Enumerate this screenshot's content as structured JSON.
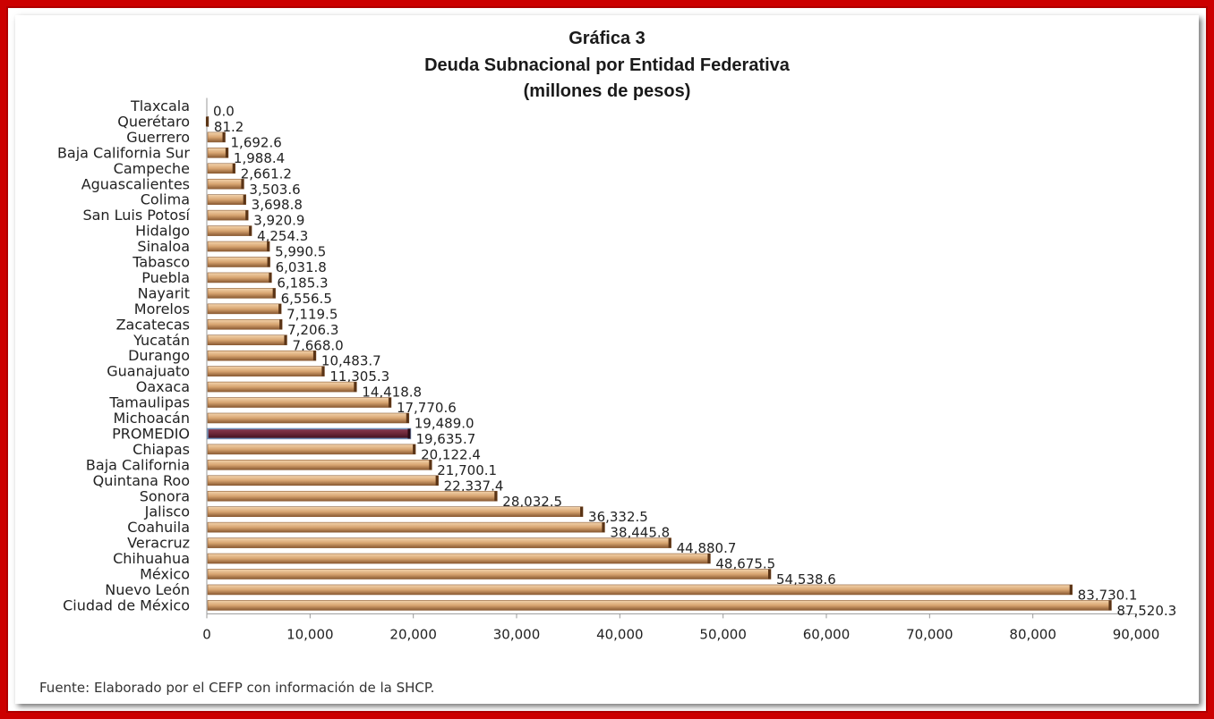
{
  "chart_data": {
    "type": "bar",
    "orientation": "horizontal",
    "title": "Gráfica 3",
    "subtitle": "Deuda Subnacional por Entidad Federativa",
    "unit_label": "(millones de pesos)",
    "xlim": [
      0,
      90000
    ],
    "xticks": [
      "0",
      "10,000",
      "20,000",
      "30,000",
      "40,000",
      "50,000",
      "60,000",
      "70,000",
      "80,000",
      "90,000"
    ],
    "categories": [
      "Tlaxcala",
      "Querétaro",
      "Guerrero",
      "Baja California Sur",
      "Campeche",
      "Aguascalientes",
      "Colima",
      "San Luis Potosí",
      "Hidalgo",
      "Sinaloa",
      "Tabasco",
      "Puebla",
      "Nayarit",
      "Morelos",
      "Zacatecas",
      "Yucatán",
      "Durango",
      "Guanajuato",
      "Oaxaca",
      "Tamaulipas",
      "Michoacán",
      "PROMEDIO",
      "Chiapas",
      "Baja California",
      "Quintana Roo",
      "Sonora",
      "Jalisco",
      "Coahuila",
      "Veracruz",
      "Chihuahua",
      "México",
      "Nuevo León",
      "Ciudad de México"
    ],
    "values": [
      0.0,
      81.2,
      1692.6,
      1988.4,
      2661.2,
      3503.6,
      3698.8,
      3920.9,
      4254.3,
      5990.5,
      6031.8,
      6185.3,
      6556.5,
      7119.5,
      7206.3,
      7668.0,
      10483.7,
      11305.3,
      14418.8,
      17770.6,
      19489.0,
      19635.7,
      20122.4,
      21700.1,
      22337.4,
      28032.5,
      36332.5,
      38445.8,
      44880.7,
      48675.5,
      54538.6,
      83730.1,
      87520.3
    ],
    "value_labels": [
      "0.0",
      "81.2",
      "1,692.6",
      "1,988.4",
      "2,661.2",
      "3,503.6",
      "3,698.8",
      "3,920.9",
      "4,254.3",
      "5,990.5",
      "6,031.8",
      "6,185.3",
      "6,556.5",
      "7,119.5",
      "7,206.3",
      "7,668.0",
      "10,483.7",
      "11,305.3",
      "14,418.8",
      "17,770.6",
      "19,489.0",
      "19,635.7",
      "20,122.4",
      "21,700.1",
      "22,337.4",
      "28,032.5",
      "36,332.5",
      "38,445.8",
      "44,880.7",
      "48,675.5",
      "54,538.6",
      "83,730.1",
      "87,520.3"
    ],
    "highlight_category": "PROMEDIO",
    "colors": {
      "bar": "#d8a571",
      "bar_dark": "#8a5a32",
      "bar_light": "#f3d4ad",
      "highlight": "#6b2638",
      "highlight_border": "#6f8fb8",
      "frame": "#cc0000"
    },
    "grid": false,
    "legend": "none"
  },
  "source_note": "Fuente: Elaborado por el CEFP con información de la SHCP."
}
